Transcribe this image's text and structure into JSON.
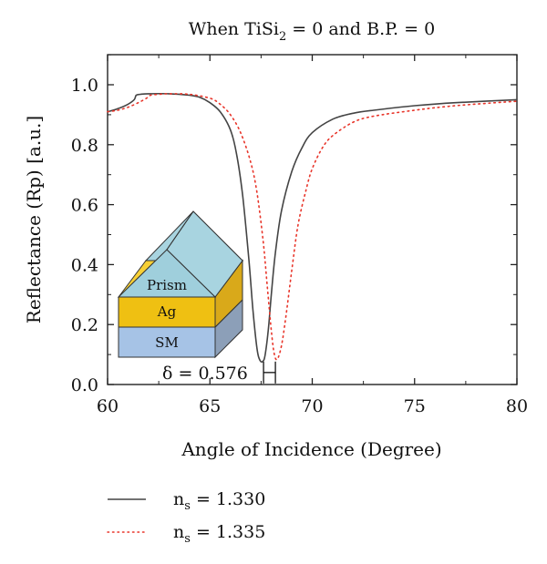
{
  "chart_data": {
    "type": "line",
    "title": {
      "prefix": "When TiSi",
      "subscript": "2",
      "suffix": " = 0 and B.P. = 0"
    },
    "xlabel": "Angle of Incidence (Degree)",
    "ylabel": "Reflectance (Rp) [a.u.]",
    "xlim": [
      60,
      80
    ],
    "ylim": [
      0,
      1.1
    ],
    "x_ticks": [
      60,
      65,
      70,
      75,
      80
    ],
    "y_ticks": [
      0.0,
      0.2,
      0.4,
      0.6,
      0.8,
      1.0
    ],
    "x_tick_labels": [
      "60",
      "65",
      "70",
      "75",
      "80"
    ],
    "y_tick_labels": [
      "0.0",
      "0.2",
      "0.4",
      "0.6",
      "0.8",
      "1.0"
    ],
    "grid": false,
    "legend_position": "bottom",
    "series": [
      {
        "name_prefix": "n",
        "name_subscript": "s",
        "name_suffix": " = 1.330",
        "style": "solid",
        "color": "#444444",
        "x": [
          60.0,
          60.5,
          61.0,
          61.3,
          61.4,
          61.6,
          62.0,
          63.0,
          64.0,
          64.5,
          65.0,
          65.5,
          66.0,
          66.3,
          66.6,
          66.9,
          67.1,
          67.3,
          67.45,
          67.6,
          67.7,
          67.85,
          68.0,
          68.2,
          68.5,
          69.0,
          69.5,
          70.0,
          71.0,
          72.0,
          73.0,
          75.0,
          77.0,
          80.0
        ],
        "y": [
          0.91,
          0.92,
          0.935,
          0.95,
          0.965,
          0.968,
          0.97,
          0.97,
          0.965,
          0.958,
          0.94,
          0.91,
          0.85,
          0.77,
          0.63,
          0.42,
          0.25,
          0.12,
          0.08,
          0.078,
          0.1,
          0.18,
          0.3,
          0.44,
          0.58,
          0.71,
          0.79,
          0.84,
          0.885,
          0.905,
          0.915,
          0.93,
          0.94,
          0.95
        ]
      },
      {
        "name_prefix": "n",
        "name_subscript": "s",
        "name_suffix": " = 1.335",
        "style": "dotted",
        "color": "#e8352a",
        "x": [
          60.0,
          60.5,
          61.0,
          61.5,
          61.9,
          62.1,
          62.5,
          63.0,
          64.0,
          65.0,
          65.5,
          66.0,
          66.5,
          67.0,
          67.3,
          67.6,
          67.8,
          68.0,
          68.15,
          68.3,
          68.5,
          68.7,
          69.0,
          69.3,
          69.7,
          70.0,
          70.5,
          71.0,
          72.0,
          73.0,
          75.0,
          77.0,
          80.0
        ],
        "y": [
          0.91,
          0.915,
          0.925,
          0.94,
          0.955,
          0.965,
          0.968,
          0.97,
          0.968,
          0.955,
          0.935,
          0.9,
          0.84,
          0.74,
          0.64,
          0.48,
          0.33,
          0.18,
          0.1,
          0.085,
          0.13,
          0.22,
          0.38,
          0.53,
          0.65,
          0.72,
          0.79,
          0.83,
          0.875,
          0.895,
          0.915,
          0.93,
          0.945
        ]
      }
    ],
    "annotation": {
      "text": "δ = 0.576",
      "x1": 67.62,
      "x2": 68.2,
      "y": 0.04
    },
    "inset": {
      "labels": [
        "Prism",
        "Ag",
        "SM"
      ],
      "colors": {
        "prism_front": "#9fcfdc",
        "prism_top": "#a8d4e0",
        "ag_top": "#f7d035",
        "ag_front": "#efc012",
        "ag_side": "#d9a91a",
        "sm_front": "#a6c3e6",
        "sm_side": "#8c9fb8"
      }
    }
  }
}
